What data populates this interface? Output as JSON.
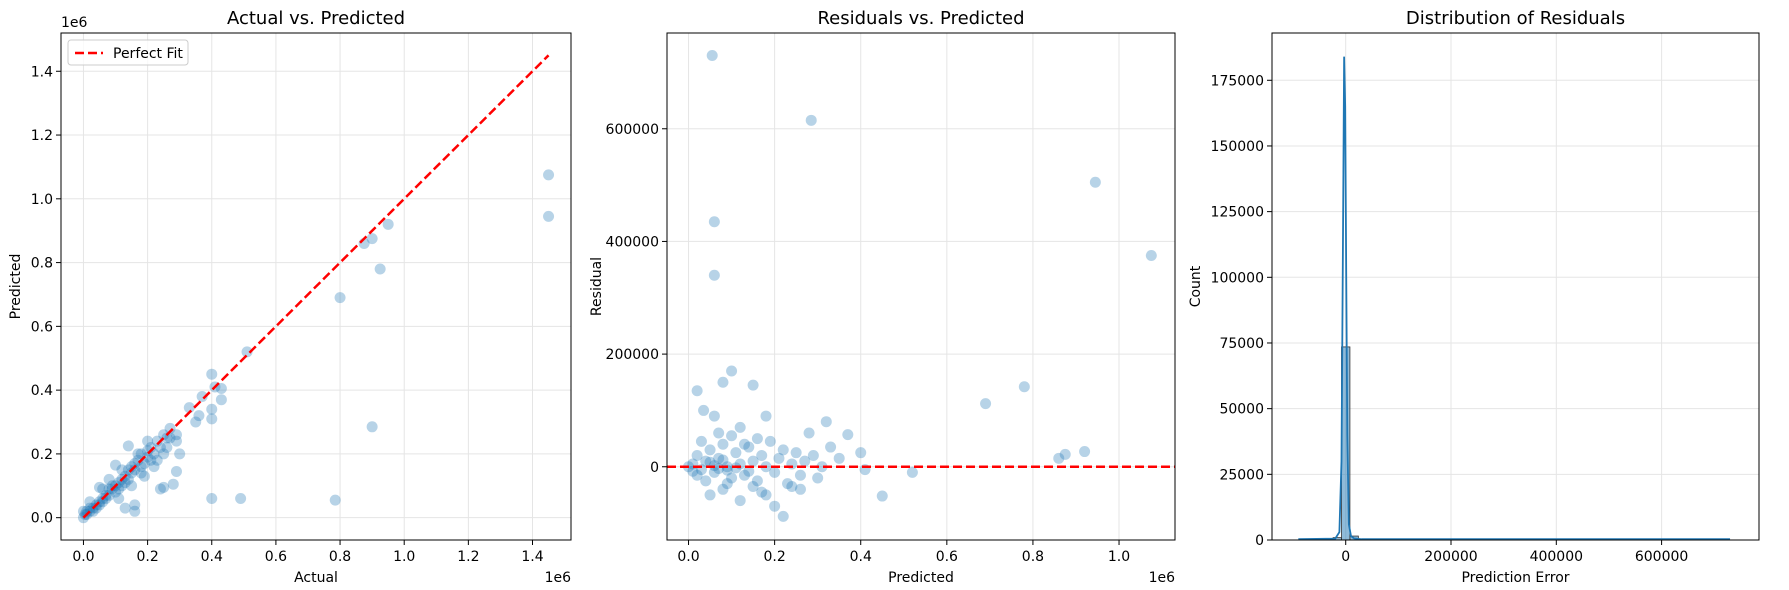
{
  "chart_data": [
    {
      "type": "scatter",
      "title": "Actual vs. Predicted",
      "xlabel": "Actual",
      "ylabel": "Predicted",
      "x_offset_label": "1e6",
      "y_offset_label": "1e6",
      "xlim": [
        -0.07,
        1.52
      ],
      "ylim": [
        -0.07,
        1.52
      ],
      "xticks": [
        0.0,
        0.2,
        0.4,
        0.6,
        0.8,
        1.0,
        1.2,
        1.4
      ],
      "xtick_labels": [
        "0.0",
        "0.2",
        "0.4",
        "0.6",
        "0.8",
        "1.0",
        "1.2",
        "1.4"
      ],
      "yticks": [
        0.0,
        0.2,
        0.4,
        0.6,
        0.8,
        1.0,
        1.2,
        1.4
      ],
      "ytick_labels": [
        "0.0",
        "0.2",
        "0.4",
        "0.6",
        "0.8",
        "1.0",
        "1.2",
        "1.4"
      ],
      "grid": true,
      "legend": {
        "position": "top-left",
        "entries": [
          "Perfect Fit"
        ]
      },
      "reference_line": {
        "name": "Perfect Fit",
        "from": [
          0,
          0
        ],
        "to": [
          1.45,
          1.45
        ],
        "color": "#ff0000",
        "style": "dashed"
      },
      "point_color": "#1f77b4",
      "points": [
        [
          1.45,
          1.075
        ],
        [
          1.45,
          0.945
        ],
        [
          0.95,
          0.92
        ],
        [
          0.9,
          0.875
        ],
        [
          0.875,
          0.86
        ],
        [
          0.925,
          0.78
        ],
        [
          0.8,
          0.69
        ],
        [
          0.9,
          0.285
        ],
        [
          0.4,
          0.06
        ],
        [
          0.49,
          0.06
        ],
        [
          0.785,
          0.055
        ],
        [
          0.51,
          0.52
        ],
        [
          0.4,
          0.45
        ],
        [
          0.43,
          0.405
        ],
        [
          0.41,
          0.41
        ],
        [
          0.43,
          0.37
        ],
        [
          0.4,
          0.34
        ],
        [
          0.4,
          0.31
        ],
        [
          0.33,
          0.345
        ],
        [
          0.37,
          0.38
        ],
        [
          0.36,
          0.32
        ],
        [
          0.35,
          0.3
        ],
        [
          0.29,
          0.26
        ],
        [
          0.29,
          0.24
        ],
        [
          0.3,
          0.2
        ],
        [
          0.29,
          0.145
        ],
        [
          0.28,
          0.105
        ],
        [
          0.24,
          0.09
        ],
        [
          0.25,
          0.095
        ],
        [
          0.16,
          0.04
        ],
        [
          0.16,
          0.02
        ],
        [
          0.13,
          0.03
        ],
        [
          0.05,
          0.095
        ],
        [
          0.1,
          0.165
        ],
        [
          0.14,
          0.225
        ],
        [
          0.27,
          0.28
        ],
        [
          0.26,
          0.25
        ],
        [
          0.25,
          0.26
        ],
        [
          0.24,
          0.22
        ],
        [
          0.23,
          0.24
        ],
        [
          0.22,
          0.2
        ],
        [
          0.21,
          0.22
        ],
        [
          0.2,
          0.19
        ],
        [
          0.2,
          0.21
        ],
        [
          0.19,
          0.17
        ],
        [
          0.18,
          0.2
        ],
        [
          0.18,
          0.16
        ],
        [
          0.17,
          0.18
        ],
        [
          0.16,
          0.15
        ],
        [
          0.16,
          0.17
        ],
        [
          0.15,
          0.14
        ],
        [
          0.15,
          0.16
        ],
        [
          0.14,
          0.12
        ],
        [
          0.14,
          0.15
        ],
        [
          0.13,
          0.13
        ],
        [
          0.13,
          0.11
        ],
        [
          0.12,
          0.12
        ],
        [
          0.12,
          0.1
        ],
        [
          0.11,
          0.11
        ],
        [
          0.11,
          0.09
        ],
        [
          0.1,
          0.1
        ],
        [
          0.1,
          0.08
        ],
        [
          0.09,
          0.09
        ],
        [
          0.09,
          0.1
        ],
        [
          0.08,
          0.07
        ],
        [
          0.08,
          0.09
        ],
        [
          0.07,
          0.07
        ],
        [
          0.07,
          0.06
        ],
        [
          0.06,
          0.06
        ],
        [
          0.06,
          0.05
        ],
        [
          0.05,
          0.05
        ],
        [
          0.05,
          0.04
        ],
        [
          0.04,
          0.04
        ],
        [
          0.04,
          0.03
        ],
        [
          0.03,
          0.03
        ],
        [
          0.03,
          0.02
        ],
        [
          0.02,
          0.02
        ],
        [
          0.02,
          0.03
        ],
        [
          0.01,
          0.01
        ],
        [
          0.01,
          0.02
        ],
        [
          0.0,
          0.0
        ],
        [
          0.005,
          0.01
        ],
        [
          0.0,
          0.02
        ],
        [
          0.02,
          0.05
        ],
        [
          0.08,
          0.12
        ],
        [
          0.11,
          0.06
        ],
        [
          0.15,
          0.1
        ],
        [
          0.19,
          0.13
        ],
        [
          0.22,
          0.16
        ],
        [
          0.23,
          0.18
        ],
        [
          0.12,
          0.15
        ],
        [
          0.06,
          0.09
        ],
        [
          0.17,
          0.2
        ],
        [
          0.2,
          0.24
        ],
        [
          0.21,
          0.18
        ],
        [
          0.18,
          0.14
        ],
        [
          0.26,
          0.22
        ],
        [
          0.25,
          0.2
        ],
        [
          0.27,
          0.25
        ]
      ]
    },
    {
      "type": "scatter",
      "title": "Residuals vs. Predicted",
      "xlabel": "Predicted",
      "ylabel": "Residual",
      "x_offset_label": "1e6",
      "xlim": [
        -0.05,
        1.13
      ],
      "ylim": [
        -130000,
        770000
      ],
      "xticks": [
        0.0,
        0.2,
        0.4,
        0.6,
        0.8,
        1.0
      ],
      "xtick_labels": [
        "0.0",
        "0.2",
        "0.4",
        "0.6",
        "0.8",
        "1.0"
      ],
      "yticks": [
        0,
        200000,
        400000,
        600000
      ],
      "ytick_labels": [
        "0",
        "200000",
        "400000",
        "600000"
      ],
      "grid": true,
      "reference_line": {
        "y": 0,
        "color": "#ff0000",
        "style": "dashed"
      },
      "point_color": "#1f77b4",
      "points": [
        [
          0.055,
          730000
        ],
        [
          0.285,
          615000
        ],
        [
          0.06,
          435000
        ],
        [
          0.06,
          340000
        ],
        [
          0.945,
          505000
        ],
        [
          1.075,
          375000
        ],
        [
          0.69,
          112000
        ],
        [
          0.78,
          142000
        ],
        [
          0.86,
          15000
        ],
        [
          0.875,
          22000
        ],
        [
          0.92,
          27000
        ],
        [
          0.52,
          -10000
        ],
        [
          0.45,
          -52000
        ],
        [
          0.22,
          -88000
        ],
        [
          0.1,
          170000
        ],
        [
          0.08,
          150000
        ],
        [
          0.15,
          145000
        ],
        [
          0.02,
          135000
        ],
        [
          0.035,
          100000
        ],
        [
          0.06,
          90000
        ],
        [
          0.18,
          90000
        ],
        [
          0.28,
          60000
        ],
        [
          0.32,
          80000
        ],
        [
          0.37,
          57000
        ],
        [
          0.4,
          25000
        ],
        [
          0.41,
          -5000
        ],
        [
          0.33,
          35000
        ],
        [
          0.3,
          -20000
        ],
        [
          0.26,
          -40000
        ],
        [
          0.2,
          -70000
        ],
        [
          0.17,
          -45000
        ],
        [
          0.12,
          -60000
        ],
        [
          0.09,
          -30000
        ],
        [
          0.05,
          -50000
        ],
        [
          0.02,
          -15000
        ],
        [
          0.01,
          5000
        ],
        [
          0.02,
          20000
        ],
        [
          0.03,
          -5000
        ],
        [
          0.04,
          10000
        ],
        [
          0.05,
          30000
        ],
        [
          0.06,
          -10000
        ],
        [
          0.07,
          15000
        ],
        [
          0.08,
          40000
        ],
        [
          0.09,
          0
        ],
        [
          0.1,
          -20000
        ],
        [
          0.11,
          25000
        ],
        [
          0.12,
          5000
        ],
        [
          0.13,
          -15000
        ],
        [
          0.14,
          35000
        ],
        [
          0.15,
          10000
        ],
        [
          0.16,
          -25000
        ],
        [
          0.17,
          20000
        ],
        [
          0.18,
          0
        ],
        [
          0.19,
          45000
        ],
        [
          0.2,
          -10000
        ],
        [
          0.21,
          15000
        ],
        [
          0.22,
          30000
        ],
        [
          0.23,
          -30000
        ],
        [
          0.24,
          5000
        ],
        [
          0.25,
          25000
        ],
        [
          0.26,
          -15000
        ],
        [
          0.27,
          10000
        ],
        [
          0.29,
          20000
        ],
        [
          0.31,
          0
        ],
        [
          0.35,
          15000
        ],
        [
          0.0,
          0
        ],
        [
          0.01,
          -8000
        ],
        [
          0.03,
          45000
        ],
        [
          0.04,
          -25000
        ],
        [
          0.07,
          60000
        ],
        [
          0.08,
          -40000
        ],
        [
          0.1,
          55000
        ],
        [
          0.12,
          70000
        ],
        [
          0.13,
          40000
        ],
        [
          0.16,
          50000
        ],
        [
          0.05,
          8000
        ],
        [
          0.06,
          2000
        ],
        [
          0.07,
          -3000
        ],
        [
          0.08,
          12000
        ],
        [
          0.09,
          -6000
        ],
        [
          0.11,
          -2000
        ],
        [
          0.14,
          -8000
        ],
        [
          0.15,
          -35000
        ],
        [
          0.18,
          -50000
        ],
        [
          0.24,
          -35000
        ]
      ]
    },
    {
      "type": "histogram",
      "title": "Distribution of Residuals",
      "xlabel": "Prediction Error",
      "ylabel": "Count",
      "xlim": [
        -140000,
        785000
      ],
      "ylim": [
        0,
        193000
      ],
      "xticks": [
        0,
        200000,
        400000,
        600000
      ],
      "xtick_labels": [
        "0",
        "200000",
        "400000",
        "600000"
      ],
      "yticks": [
        0,
        25000,
        50000,
        75000,
        100000,
        125000,
        150000,
        175000
      ],
      "ytick_labels": [
        "0",
        "25000",
        "50000",
        "75000",
        "100000",
        "125000",
        "150000",
        "175000"
      ],
      "grid": true,
      "bar_color": "#1f77b4",
      "bins": [
        {
          "start": -24000,
          "end": -8000,
          "count": 900
        },
        {
          "start": -8000,
          "end": 8000,
          "count": 73500
        },
        {
          "start": 8000,
          "end": 24000,
          "count": 1500
        },
        {
          "start": 24000,
          "end": 40000,
          "count": 200
        }
      ],
      "kde": {
        "x": [
          -90000,
          -20000,
          -12000,
          -8000,
          -5000,
          -3000,
          -1000,
          1000,
          3000,
          6000,
          10000,
          16000,
          30000,
          730000
        ],
        "y": [
          300,
          500,
          3000,
          30000,
          120000,
          184000,
          165000,
          100000,
          40000,
          6000,
          1500,
          600,
          300,
          300
        ]
      }
    }
  ]
}
